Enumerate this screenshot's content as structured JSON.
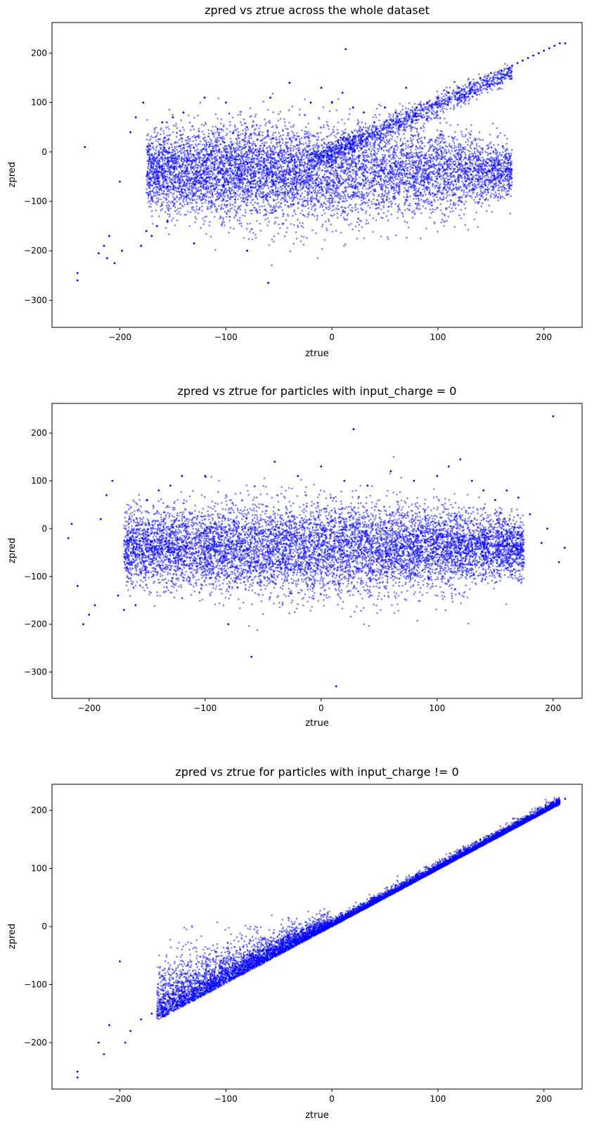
{
  "figure": {
    "background": "#ffffff",
    "marker_color": "#0000ff"
  },
  "chart_data": [
    {
      "type": "scatter",
      "title": "zpred vs ztrue across the whole dataset",
      "xlabel": "ztrue",
      "ylabel": "zpred",
      "xlim": [
        -264,
        236
      ],
      "ylim": [
        -355,
        262
      ],
      "xticks": [
        -200,
        -100,
        0,
        100,
        200
      ],
      "yticks": [
        -300,
        -200,
        -100,
        0,
        100,
        200
      ],
      "xtick_labels": [
        "−200",
        "−100",
        "0",
        "100",
        "200"
      ],
      "ytick_labels": [
        "−300",
        "−200",
        "−100",
        "0",
        "100",
        "200"
      ],
      "grid": false,
      "legend": "none",
      "color": "#0000ff",
      "marker": "dot",
      "series": [
        {
          "values_note_free": true,
          "x": [
            -240,
            -240,
            -233,
            -220,
            -215,
            -212,
            -210,
            -205,
            -200,
            -198,
            -190,
            -185,
            -180,
            -178,
            -175,
            -170,
            -165,
            -160,
            -155,
            -150,
            -140,
            -130,
            -120,
            -100,
            -80,
            -60,
            -58,
            -40,
            -20,
            -10,
            0,
            10,
            13,
            20,
            30,
            40,
            50,
            60,
            70,
            80,
            90,
            100,
            110,
            120,
            130,
            140,
            150,
            160,
            170,
            175,
            180,
            185,
            190,
            195,
            200,
            205,
            210,
            215,
            220
          ],
          "y": [
            -245,
            -260,
            10,
            -205,
            -190,
            -215,
            -170,
            -225,
            -60,
            -200,
            40,
            70,
            -190,
            100,
            -160,
            -170,
            -150,
            60,
            -140,
            70,
            80,
            -185,
            110,
            100,
            -200,
            -265,
            110,
            140,
            100,
            130,
            100,
            120,
            208,
            90,
            80,
            60,
            90,
            80,
            130,
            90,
            100,
            110,
            120,
            130,
            140,
            150,
            160,
            165,
            175,
            180,
            185,
            190,
            195,
            200,
            205,
            210,
            215,
            220,
            220
          ]
        }
      ]
    },
    {
      "type": "scatter",
      "title": "zpred vs ztrue for particles with input_charge = 0",
      "xlabel": "ztrue",
      "ylabel": "zpred",
      "xlim": [
        -232,
        225
      ],
      "ylim": [
        -355,
        262
      ],
      "xticks": [
        -200,
        -100,
        0,
        100,
        200
      ],
      "yticks": [
        -300,
        -200,
        -100,
        0,
        100,
        200
      ],
      "xtick_labels": [
        "−200",
        "−100",
        "0",
        "100",
        "200"
      ],
      "ytick_labels": [
        "−300",
        "−200",
        "−100",
        "0",
        "100",
        "200"
      ],
      "grid": false,
      "legend": "none",
      "color": "#0000ff",
      "marker": "dot",
      "series": [
        {
          "x": [
            -218,
            -215,
            -210,
            -205,
            -200,
            -195,
            -190,
            -185,
            -180,
            -175,
            -170,
            -160,
            -150,
            -140,
            -130,
            -120,
            -100,
            -80,
            -60,
            -40,
            -20,
            0,
            13,
            20,
            28,
            40,
            60,
            80,
            100,
            110,
            120,
            130,
            140,
            150,
            160,
            170,
            180,
            190,
            195,
            200,
            205,
            210
          ],
          "y": [
            -20,
            10,
            -120,
            -200,
            -180,
            -160,
            20,
            70,
            100,
            -140,
            -170,
            -160,
            60,
            80,
            90,
            110,
            110,
            -200,
            -268,
            140,
            110,
            130,
            -330,
            100,
            208,
            90,
            120,
            100,
            110,
            130,
            145,
            100,
            80,
            60,
            80,
            65,
            30,
            -30,
            0,
            235,
            -70,
            -40
          ]
        }
      ]
    },
    {
      "type": "scatter",
      "title": "zpred vs ztrue for particles with input_charge != 0",
      "xlabel": "ztrue",
      "ylabel": "zpred",
      "xlim": [
        -264,
        236
      ],
      "ylim": [
        -280,
        245
      ],
      "xticks": [
        -200,
        -100,
        0,
        100,
        200
      ],
      "yticks": [
        -200,
        -100,
        0,
        100,
        200
      ],
      "xtick_labels": [
        "−200",
        "−100",
        "0",
        "100",
        "200"
      ],
      "ytick_labels": [
        "−200",
        "−100",
        "0",
        "100",
        "200"
      ],
      "grid": false,
      "legend": "none",
      "color": "#0000ff",
      "marker": "dot",
      "series": [
        {
          "x": [
            -240,
            -240,
            -220,
            -215,
            -210,
            -200,
            -195,
            -190,
            -180,
            -170,
            -160,
            -150,
            -140,
            -120,
            -100,
            -80,
            -60,
            -40,
            -20,
            -10,
            0,
            10,
            20,
            30,
            40,
            60,
            80,
            100,
            120,
            140,
            160,
            180,
            200,
            210,
            220
          ],
          "y": [
            -250,
            -260,
            -200,
            -220,
            -170,
            -60,
            -200,
            -180,
            -160,
            -150,
            -140,
            -130,
            -120,
            -100,
            -80,
            -60,
            -40,
            -20,
            -10,
            0,
            10,
            20,
            30,
            40,
            50,
            70,
            90,
            110,
            130,
            150,
            165,
            185,
            200,
            210,
            220
          ]
        }
      ]
    }
  ]
}
